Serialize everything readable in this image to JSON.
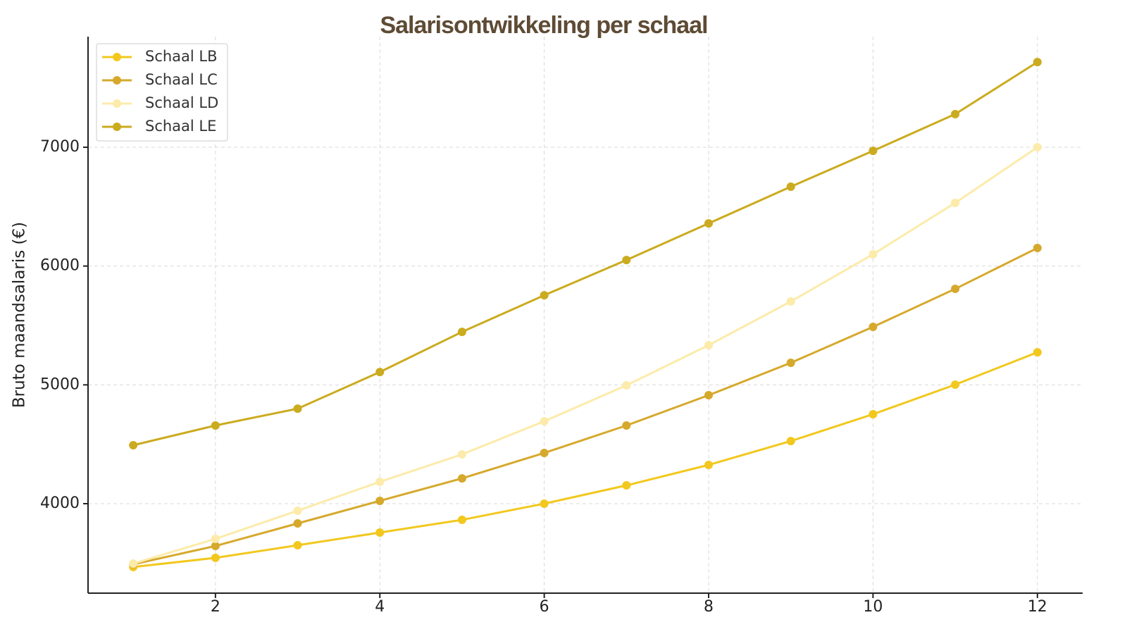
{
  "chart_data": {
    "type": "line",
    "title": "Salarisontwikkeling per schaal",
    "y_label": "Bruto maandsalaris (€)",
    "x": [
      1,
      2,
      3,
      4,
      5,
      6,
      7,
      8,
      9,
      10,
      11,
      12
    ],
    "series": [
      {
        "name": "Schaal LB",
        "color": "#f2c81e",
        "values": [
          3467,
          3544,
          3650,
          3757,
          3864,
          4000,
          4154,
          4326,
          4527,
          4753,
          5002,
          5274
        ]
      },
      {
        "name": "Schaal LC",
        "color": "#d6a92c",
        "values": [
          3490,
          3644,
          3834,
          4024,
          4213,
          4427,
          4658,
          4913,
          5186,
          5488,
          5808,
          6152
        ]
      },
      {
        "name": "Schaal LD",
        "color": "#fcebaa",
        "values": [
          3496,
          3704,
          3941,
          4184,
          4415,
          4694,
          4996,
          5334,
          5702,
          6099,
          6532,
          7000
        ]
      },
      {
        "name": "Schaal LE",
        "color": "#cbab1f",
        "values": [
          4492,
          4658,
          4800,
          5108,
          5446,
          5754,
          6051,
          6359,
          6668,
          6970,
          7279,
          7717
        ]
      }
    ],
    "xlim": [
      0.45,
      12.55
    ],
    "xticks": [
      2,
      4,
      6,
      8,
      10,
      12
    ],
    "ylim": [
      3247,
      7931
    ],
    "yticks": [
      4000,
      5000,
      6000,
      7000
    ],
    "grid": true,
    "legend": "upper-left"
  }
}
